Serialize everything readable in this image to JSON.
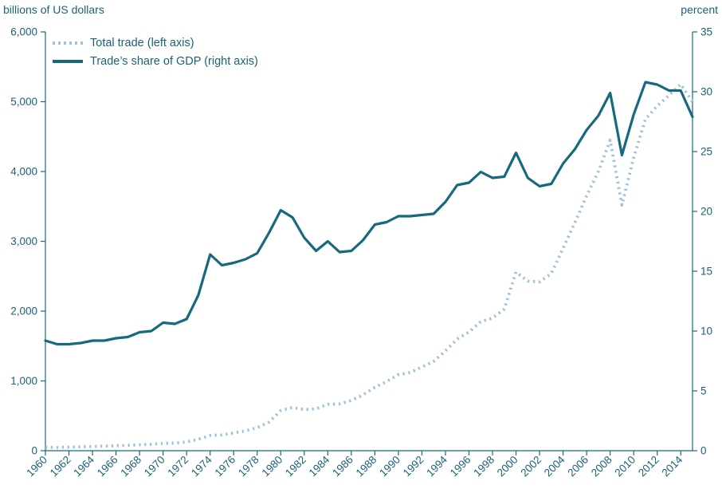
{
  "chart": {
    "left_axis": {
      "title": "billions of US dollars",
      "min": 0,
      "max": 6000,
      "ticks": [
        {
          "value": 0,
          "label": "0"
        },
        {
          "value": 1000,
          "label": "1,000"
        },
        {
          "value": 2000,
          "label": "2,000"
        },
        {
          "value": 3000,
          "label": "3,000"
        },
        {
          "value": 4000,
          "label": "4,000"
        },
        {
          "value": 5000,
          "label": "5,000"
        },
        {
          "value": 6000,
          "label": "6,000"
        }
      ]
    },
    "right_axis": {
      "title": "percent",
      "min": 0,
      "max": 35,
      "ticks": [
        {
          "value": 0,
          "label": "0"
        },
        {
          "value": 5,
          "label": "5"
        },
        {
          "value": 10,
          "label": "10"
        },
        {
          "value": 15,
          "label": "15"
        },
        {
          "value": 20,
          "label": "20"
        },
        {
          "value": 25,
          "label": "25"
        },
        {
          "value": 30,
          "label": "30"
        },
        {
          "value": 35,
          "label": "35"
        }
      ]
    },
    "x_axis": {
      "min": 1960,
      "max": 2015,
      "tick_years": [
        1960,
        1962,
        1964,
        1966,
        1968,
        1970,
        1972,
        1974,
        1976,
        1978,
        1980,
        1982,
        1984,
        1986,
        1988,
        1990,
        1992,
        1994,
        1996,
        1998,
        2000,
        2002,
        2004,
        2006,
        2008,
        2010,
        2012,
        2014
      ]
    },
    "colors": {
      "total_trade": "#9fc2dc",
      "gdp_share": "#17697e",
      "axis": "#17697e"
    }
  },
  "chart_data": {
    "type": "line",
    "title": "",
    "xlabel": "",
    "legend_position": "top-left",
    "grid": false,
    "x": [
      1960,
      1961,
      1962,
      1963,
      1964,
      1965,
      1966,
      1967,
      1968,
      1969,
      1970,
      1971,
      1972,
      1973,
      1974,
      1975,
      1976,
      1977,
      1978,
      1979,
      1980,
      1981,
      1982,
      1983,
      1984,
      1985,
      1986,
      1987,
      1988,
      1989,
      1990,
      1991,
      1992,
      1993,
      1994,
      1995,
      1996,
      1997,
      1998,
      1999,
      2000,
      2001,
      2002,
      2003,
      2004,
      2005,
      2006,
      2007,
      2008,
      2009,
      2010,
      2011,
      2012,
      2013,
      2014,
      2015
    ],
    "left_ylim": [
      0,
      6000
    ],
    "right_ylim": [
      0,
      35
    ],
    "series": [
      {
        "name": "Total trade (left axis)",
        "axis": "left",
        "style": "dotted",
        "color": "#9fc2dc",
        "values": [
          47,
          48,
          51,
          55,
          62,
          65,
          72,
          76,
          85,
          93,
          105,
          110,
          125,
          165,
          220,
          225,
          255,
          285,
          330,
          410,
          575,
          620,
          590,
          600,
          665,
          670,
          720,
          800,
          910,
          990,
          1090,
          1120,
          1200,
          1280,
          1430,
          1600,
          1700,
          1850,
          1900,
          2030,
          2560,
          2430,
          2420,
          2540,
          2900,
          3270,
          3650,
          4000,
          4450,
          3520,
          4200,
          4750,
          4940,
          5090,
          5250,
          5000
        ]
      },
      {
        "name": "Trade’s share of GDP (right axis)",
        "axis": "right",
        "style": "solid",
        "color": "#17697e",
        "values": [
          9.2,
          8.9,
          8.9,
          9.0,
          9.2,
          9.2,
          9.4,
          9.5,
          9.9,
          10.0,
          10.7,
          10.6,
          11.0,
          13.0,
          16.4,
          15.5,
          15.7,
          16.0,
          16.5,
          18.2,
          20.1,
          19.5,
          17.8,
          16.7,
          17.5,
          16.6,
          16.7,
          17.6,
          18.9,
          19.1,
          19.6,
          19.6,
          19.7,
          19.8,
          20.8,
          22.2,
          22.4,
          23.3,
          22.8,
          22.9,
          24.9,
          22.8,
          22.1,
          22.3,
          24.0,
          25.2,
          26.8,
          28.0,
          29.9,
          24.7,
          28.1,
          30.8,
          30.6,
          30.1,
          30.1,
          27.9
        ]
      }
    ]
  }
}
